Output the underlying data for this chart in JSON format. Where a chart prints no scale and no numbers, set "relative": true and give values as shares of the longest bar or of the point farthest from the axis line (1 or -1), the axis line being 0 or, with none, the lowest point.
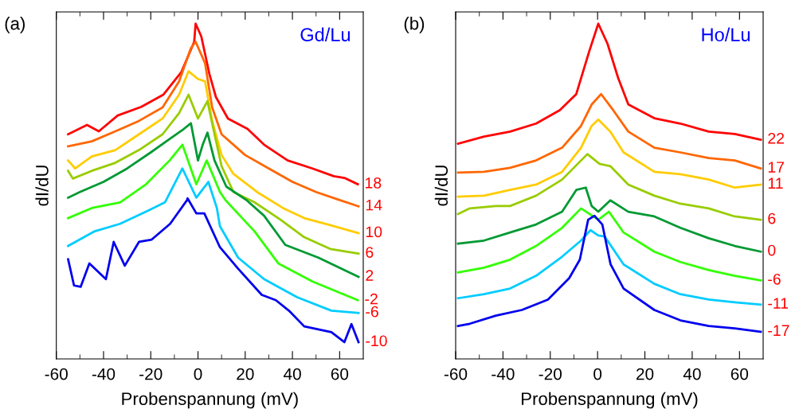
{
  "chart_data": [
    {
      "type": "line",
      "title": "(a)",
      "annotations": [
        "Gd/Lu"
      ],
      "xlabel": "Probenspannung (mV)",
      "ylabel": "dI/dU",
      "relative": true,
      "tick_labels": "x",
      "grid": false,
      "legend": false,
      "line_style": "solid",
      "marker": "none",
      "xlim": [
        -60,
        70
      ],
      "xticks": [
        -60,
        {
          "value": -50,
          "label": null
        },
        -40,
        {
          "value": -30,
          "label": null
        },
        -20,
        {
          "value": -10,
          "label": null
        },
        0,
        {
          "value": 10,
          "label": null
        },
        20,
        {
          "value": 30,
          "label": null
        },
        40,
        {
          "value": 50,
          "label": null
        },
        60
      ],
      "series": [
        {
          "name": "18",
          "color": "#ff0000",
          "x": [
            -55,
            -47,
            -42,
            -34,
            -24,
            -14.7,
            -7,
            -1.6,
            -1,
            1.4,
            4.8,
            7.6,
            12.7,
            21,
            28,
            38,
            48.5,
            57.5,
            62,
            67.7
          ],
          "values": [
            0.67,
            0.698,
            0.679,
            0.726,
            0.752,
            0.788,
            0.856,
            0.946,
            1.0,
            0.962,
            0.851,
            0.781,
            0.717,
            0.686,
            0.639,
            0.592,
            0.568,
            0.545,
            0.54,
            0.521
          ]
        },
        {
          "name": "14",
          "color": "#ff6600",
          "x": [
            -55,
            -45,
            -35,
            -25,
            -15,
            -8,
            -3,
            -1,
            3,
            6,
            10,
            20,
            30,
            40,
            50,
            60,
            68
          ],
          "values": [
            0.634,
            0.649,
            0.679,
            0.71,
            0.75,
            0.828,
            0.927,
            0.946,
            0.882,
            0.75,
            0.67,
            0.608,
            0.568,
            0.528,
            0.498,
            0.474,
            0.455
          ]
        },
        {
          "name": "10",
          "color": "#ffcc00",
          "x": [
            -55,
            -52,
            -45,
            -35,
            -25,
            -15,
            -8,
            -4,
            0,
            3,
            6,
            10,
            15,
            25,
            36,
            45,
            56,
            68
          ],
          "values": [
            0.592,
            0.568,
            0.604,
            0.623,
            0.67,
            0.717,
            0.788,
            0.858,
            0.835,
            0.828,
            0.71,
            0.608,
            0.552,
            0.498,
            0.45,
            0.42,
            0.399,
            0.375
          ]
        },
        {
          "name": "6",
          "color": "#99cc00",
          "x": [
            -55,
            -53,
            -45,
            -35,
            -25,
            -15,
            -8,
            -4,
            0,
            4,
            7,
            10,
            15,
            24,
            35,
            45,
            56,
            68
          ],
          "values": [
            0.561,
            0.538,
            0.561,
            0.585,
            0.623,
            0.67,
            0.733,
            0.788,
            0.717,
            0.769,
            0.67,
            0.575,
            0.498,
            0.467,
            0.415,
            0.363,
            0.328,
            0.314
          ]
        },
        {
          "name": "2",
          "color": "#009933",
          "x": [
            -55,
            -50,
            -40,
            -30,
            -20,
            -12,
            -6,
            -3,
            0,
            2,
            4,
            7,
            12,
            20.5,
            28,
            37,
            51,
            68
          ],
          "values": [
            0.481,
            0.498,
            0.528,
            0.568,
            0.616,
            0.656,
            0.686,
            0.703,
            0.592,
            0.639,
            0.675,
            0.592,
            0.514,
            0.474,
            0.427,
            0.34,
            0.302,
            0.245
          ]
        },
        {
          "name": "-2",
          "color": "#33ff00",
          "x": [
            -55,
            -45,
            -33,
            -22,
            -12,
            -6.6,
            -0.7,
            3.7,
            9.3,
            11.6,
            24,
            34,
            48.5,
            67.7
          ],
          "values": [
            0.42,
            0.45,
            0.467,
            0.521,
            0.592,
            0.639,
            0.521,
            0.592,
            0.498,
            0.474,
            0.38,
            0.285,
            0.231,
            0.175
          ]
        },
        {
          "name": "-6",
          "color": "#00ccff",
          "x": [
            -55,
            -44,
            -33,
            -21,
            -14,
            -6.6,
            -0.7,
            4.4,
            8,
            9.3,
            17,
            28,
            42,
            56.5,
            68
          ],
          "values": [
            0.337,
            0.38,
            0.403,
            0.443,
            0.467,
            0.568,
            0.481,
            0.528,
            0.45,
            0.396,
            0.302,
            0.238,
            0.184,
            0.144,
            0.137
          ]
        },
        {
          "name": "-10",
          "color": "#0000ee",
          "x": [
            -55,
            -52.5,
            -49.7,
            -46,
            -39,
            -35.7,
            -31,
            -25,
            -19.6,
            -11.8,
            -4.6,
            -4.4,
            -0.7,
            2.7,
            9.3,
            17,
            27,
            33,
            38.5,
            45,
            56.5,
            62,
            65,
            68
          ],
          "values": [
            0.297,
            0.219,
            0.215,
            0.285,
            0.238,
            0.349,
            0.278,
            0.349,
            0.356,
            0.403,
            0.474,
            0.479,
            0.434,
            0.434,
            0.333,
            0.269,
            0.191,
            0.175,
            0.144,
            0.097,
            0.08,
            0.05,
            0.104,
            0.05
          ]
        }
      ]
    },
    {
      "type": "line",
      "title": "(b)",
      "annotations": [
        "Ho/Lu"
      ],
      "xlabel": "Probenspannung (mV)",
      "ylabel": "dI/dU",
      "relative": true,
      "tick_labels": "x",
      "grid": false,
      "legend": false,
      "line_style": "solid",
      "marker": "none",
      "xlim": [
        -60,
        70
      ],
      "xticks": [
        -60,
        {
          "value": -50,
          "label": null
        },
        -40,
        {
          "value": -30,
          "label": null
        },
        -20,
        {
          "value": -10,
          "label": null
        },
        0,
        {
          "value": 10,
          "label": null
        },
        20,
        {
          "value": 30,
          "label": null
        },
        40,
        {
          "value": 50,
          "label": null
        },
        60
      ],
      "series": [
        {
          "name": "22",
          "color": "#ff0000",
          "x": [
            -59,
            -48,
            -37,
            -26,
            -16,
            -9,
            -3.6,
            0.3,
            4.2,
            8.7,
            13,
            24,
            35,
            47,
            58,
            69
          ],
          "values": [
            0.642,
            0.663,
            0.678,
            0.702,
            0.742,
            0.79,
            0.916,
            1.0,
            0.94,
            0.838,
            0.759,
            0.718,
            0.702,
            0.678,
            0.671,
            0.654
          ]
        },
        {
          "name": "17",
          "color": "#ff6600",
          "x": [
            -59,
            -48,
            -37,
            -26,
            -15,
            -7,
            -2.5,
            1.5,
            6.6,
            13,
            24,
            35,
            47,
            58,
            69
          ],
          "values": [
            0.556,
            0.558,
            0.57,
            0.592,
            0.63,
            0.695,
            0.759,
            0.79,
            0.742,
            0.678,
            0.63,
            0.616,
            0.599,
            0.592,
            0.568
          ]
        },
        {
          "name": "11",
          "color": "#ffcc00",
          "x": [
            -59,
            -48,
            -37,
            -26,
            -15,
            -7,
            -2.5,
            0.3,
            5.4,
            11,
            24,
            35,
            47,
            58,
            69
          ],
          "values": [
            0.484,
            0.487,
            0.504,
            0.52,
            0.558,
            0.63,
            0.695,
            0.714,
            0.678,
            0.616,
            0.558,
            0.551,
            0.535,
            0.511,
            0.52
          ]
        },
        {
          "name": "6",
          "color": "#99cc00",
          "x": [
            -59,
            -54,
            -43,
            -37,
            -26,
            -15,
            -4.3,
            0.8,
            5.4,
            13,
            24,
            35,
            47,
            58,
            69
          ],
          "values": [
            0.432,
            0.449,
            0.456,
            0.456,
            0.487,
            0.535,
            0.611,
            0.582,
            0.575,
            0.52,
            0.487,
            0.463,
            0.449,
            0.425,
            0.415
          ]
        },
        {
          "name": "0",
          "color": "#009933",
          "x": [
            -59,
            -48,
            -37,
            -26,
            -15,
            -9,
            -5,
            -2.5,
            0.3,
            5.4,
            13,
            24,
            35,
            47,
            58,
            69
          ],
          "values": [
            0.344,
            0.353,
            0.377,
            0.401,
            0.439,
            0.504,
            0.511,
            0.456,
            0.439,
            0.473,
            0.439,
            0.425,
            0.391,
            0.36,
            0.337,
            0.32
          ]
        },
        {
          "name": "-6",
          "color": "#33ff00",
          "x": [
            -59,
            -48,
            -37,
            -26,
            -15,
            -7,
            0.3,
            4.8,
            11,
            24,
            35,
            47,
            58,
            69
          ],
          "values": [
            0.258,
            0.272,
            0.296,
            0.337,
            0.391,
            0.449,
            0.415,
            0.439,
            0.377,
            0.32,
            0.289,
            0.265,
            0.248,
            0.234
          ]
        },
        {
          "name": "-11",
          "color": "#00ccff",
          "x": [
            -59,
            -48,
            -37,
            -26,
            -15,
            -7,
            -3,
            0.3,
            3,
            11,
            24,
            35,
            47,
            58,
            69
          ],
          "values": [
            0.181,
            0.193,
            0.21,
            0.248,
            0.305,
            0.353,
            0.384,
            0.368,
            0.365,
            0.282,
            0.224,
            0.193,
            0.177,
            0.169,
            0.162
          ]
        },
        {
          "name": "-17",
          "color": "#0000ee",
          "x": [
            -59,
            -54,
            -43,
            -32,
            -21,
            -12,
            -7.5,
            -4,
            -1.3,
            2,
            5.5,
            11,
            24,
            35,
            47,
            58,
            69
          ],
          "values": [
            0.098,
            0.105,
            0.129,
            0.146,
            0.177,
            0.241,
            0.296,
            0.415,
            0.427,
            0.401,
            0.282,
            0.21,
            0.146,
            0.115,
            0.098,
            0.091,
            0.081
          ]
        }
      ]
    }
  ]
}
